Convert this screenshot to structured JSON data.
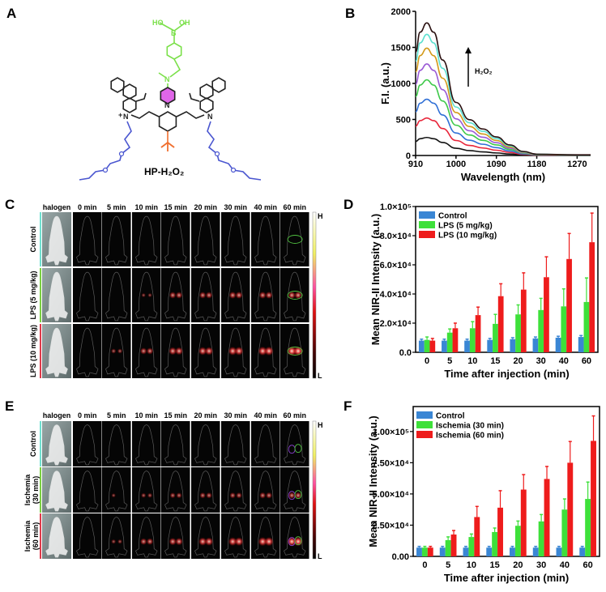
{
  "panels": {
    "a": "A",
    "b": "B",
    "c": "C",
    "d": "D",
    "e": "E",
    "f": "F"
  },
  "structure": {
    "name": "HP-H₂O₂",
    "atoms": {
      "ho": "HO",
      "oh": "OH",
      "b": "B",
      "n_amine": "N",
      "n_pyr": "N",
      "plus": "+",
      "n_left": "N",
      "n_right": "N",
      "plus_left": "+"
    },
    "colors": {
      "boronate": "#7be04a",
      "pyridinium": "#e066e8",
      "tbutyl": "#f07030",
      "peg": "#4a56d0",
      "core": "#222222"
    }
  },
  "imaging_c": {
    "columns": [
      "halogen",
      "0 min",
      "5 min",
      "10 min",
      "15 min",
      "20 min",
      "30 min",
      "40 min",
      "60 min"
    ],
    "rows": [
      {
        "label": "Control",
        "color": "#6ee0d0"
      },
      {
        "label": "LPS (5 mg/kg)",
        "color": "#7ad040"
      },
      {
        "label": "LPS (10 mg/kg)",
        "color": "#e03a4a"
      }
    ],
    "colorbar": {
      "high": "H",
      "low": "L"
    }
  },
  "imaging_e": {
    "columns": [
      "halogen",
      "0 min",
      "5 min",
      "10 min",
      "15 min",
      "20 min",
      "30 min",
      "40 min",
      "60 min"
    ],
    "rows": [
      {
        "label": "Control",
        "color": "#6ee0d0"
      },
      {
        "label": "Ischemia (30 min)",
        "line1": "Ischemia",
        "line2": "(30 min)",
        "color": "#7ad040"
      },
      {
        "label": "Ischemia (60 min)",
        "line1": "Ischemia",
        "line2": "(60 min)",
        "color": "#e03a4a"
      }
    ],
    "colorbar": {
      "high": "H",
      "low": "L"
    }
  },
  "chart_data": [
    {
      "id": "B",
      "type": "line",
      "xlabel": "Wavelength (nm)",
      "ylabel": "F.I. (a.u.)",
      "xlim": [
        910,
        1300
      ],
      "ylim": [
        0,
        2000
      ],
      "xticks": [
        910,
        1000,
        1090,
        1180,
        1270
      ],
      "yticks": [
        0,
        500,
        1000,
        1500,
        2000
      ],
      "annotation": "H₂O₂",
      "annotation_arrow": "up",
      "x": [
        910,
        920,
        935,
        950,
        970,
        1000,
        1030,
        1060,
        1090,
        1120,
        1150,
        1180,
        1270,
        1300
      ],
      "series": [
        {
          "color": "#111111",
          "values": [
            195,
            233,
            250,
            233,
            180,
            100,
            68,
            50,
            35,
            20,
            8,
            3,
            1,
            1
          ]
        },
        {
          "color": "#e8253a",
          "values": [
            406,
            484,
            520,
            484,
            374,
            208,
            140,
            104,
            73,
            42,
            16,
            5,
            3,
            3
          ]
        },
        {
          "color": "#2f6fd6",
          "values": [
            608,
            725,
            780,
            725,
            562,
            312,
            211,
            156,
            109,
            62,
            23,
            8,
            4,
            4
          ]
        },
        {
          "color": "#3ec94a",
          "values": [
            819,
            977,
            1050,
            977,
            756,
            420,
            284,
            210,
            147,
            84,
            32,
            11,
            5,
            5
          ]
        },
        {
          "color": "#9a5ad6",
          "values": [
            991,
            1181,
            1270,
            1181,
            914,
            508,
            343,
            254,
            178,
            102,
            38,
            13,
            6,
            6
          ]
        },
        {
          "color": "#d39a1a",
          "values": [
            1162,
            1386,
            1490,
            1386,
            1073,
            596,
            402,
            298,
            209,
            119,
            45,
            15,
            7,
            7
          ]
        },
        {
          "color": "#5de0d0",
          "values": [
            1310,
            1562,
            1680,
            1562,
            1210,
            672,
            454,
            336,
            235,
            134,
            50,
            17,
            8,
            8
          ]
        },
        {
          "color": "#2a1010",
          "values": [
            1435,
            1711,
            1840,
            1711,
            1325,
            736,
            497,
            368,
            258,
            147,
            55,
            18,
            9,
            9
          ]
        }
      ]
    },
    {
      "id": "D",
      "type": "bar",
      "xlabel": "Time after injection (min)",
      "ylabel": "Mean NIR-II Intensity (a.u.)",
      "ylim": [
        0,
        100000
      ],
      "yticks": [
        0,
        20000,
        40000,
        60000,
        80000,
        100000
      ],
      "ytick_labels": [
        "0.0",
        "2.0×10⁴",
        "4.0×10⁴",
        "6.0×10⁴",
        "8.0×10⁴",
        "1.0×10⁵"
      ],
      "categories": [
        "0",
        "5",
        "10",
        "15",
        "20",
        "30",
        "40",
        "60"
      ],
      "legend": "top-left",
      "series": [
        {
          "name": "Control",
          "color": "#3a86d4",
          "values": [
            8000,
            8000,
            8000,
            8500,
            9000,
            9500,
            10000,
            10500
          ],
          "errors": [
            1000,
            1000,
            1000,
            1000,
            1000,
            1000,
            1000,
            1000
          ]
        },
        {
          "name": "LPS (5 mg/kg)",
          "color": "#3ee03a",
          "values": [
            8500,
            13500,
            16500,
            19500,
            26000,
            29000,
            31500,
            34500
          ],
          "errors": [
            2000,
            2500,
            4500,
            6500,
            6500,
            8000,
            12000,
            16500
          ]
        },
        {
          "name": "LPS (10 mg/kg)",
          "color": "#ee1c1c",
          "values": [
            8000,
            16500,
            25500,
            38500,
            43000,
            51500,
            64000,
            75500
          ],
          "errors": [
            1500,
            3500,
            5500,
            8500,
            11500,
            14000,
            17500,
            20000
          ]
        }
      ]
    },
    {
      "id": "F",
      "type": "bar",
      "xlabel": "Time after injection (min)",
      "ylabel": "Mean NIR-II Intensity (a.u.)",
      "ylim": [
        0,
        120000
      ],
      "yticks": [
        0,
        25000,
        50000,
        75000,
        100000
      ],
      "ytick_labels": [
        "0.00",
        "2.50×10⁴",
        "5.00×10⁴",
        "7.50×10⁴",
        "1.00×10⁵"
      ],
      "categories": [
        "0",
        "5",
        "10",
        "15",
        "20",
        "30",
        "40",
        "60"
      ],
      "legend": "top-left",
      "series": [
        {
          "name": "Control",
          "color": "#3a86d4",
          "values": [
            7000,
            7000,
            7000,
            7000,
            7000,
            7000,
            7000,
            7000
          ],
          "errors": [
            1000,
            1000,
            1000,
            1000,
            1000,
            1000,
            1000,
            1000
          ]
        },
        {
          "name": "Ischemia (30 min)",
          "color": "#3ee03a",
          "values": [
            7000,
            13000,
            15500,
            19500,
            24500,
            28000,
            37500,
            46000
          ],
          "errors": [
            1000,
            2600,
            2400,
            3200,
            3800,
            5500,
            8500,
            13500
          ]
        },
        {
          "name": "Ischemia (60 min)",
          "color": "#ee1c1c",
          "values": [
            7000,
            17500,
            31500,
            39000,
            53500,
            62000,
            75000,
            92500
          ],
          "errors": [
            1000,
            3200,
            8500,
            13600,
            12000,
            10000,
            17000,
            20000
          ]
        }
      ]
    }
  ]
}
